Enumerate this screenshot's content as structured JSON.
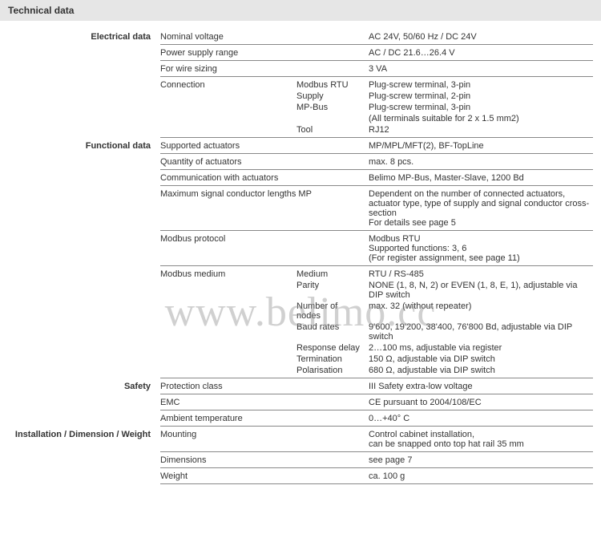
{
  "header": "Technical data",
  "watermark": "www.belimo.cc",
  "sections": [
    {
      "title": "Electrical data",
      "rows": [
        {
          "param": "Nominal voltage",
          "value": "AC 24V, 50/60 Hz / DC 24V"
        },
        {
          "param": "Power supply range",
          "value": "AC / DC 21.6…26.4 V"
        },
        {
          "param": "For wire sizing",
          "value": "3 VA"
        },
        {
          "param": "Connection",
          "sub": [
            {
              "s": "Modbus RTU",
              "v": "Plug-screw terminal, 3-pin"
            },
            {
              "s": "Supply",
              "v": "Plug-screw terminal, 2-pin"
            },
            {
              "s": "MP-Bus",
              "v": "Plug-screw terminal, 3-pin"
            },
            {
              "s": "",
              "v": "(All terminals suitable for 2 x 1.5 mm2)"
            },
            {
              "s": "Tool",
              "v": "RJ12"
            }
          ]
        }
      ]
    },
    {
      "title": "Functional data",
      "rows": [
        {
          "param": "Supported actuators",
          "value": "MP/MPL/MFT(2), BF-TopLine"
        },
        {
          "param": "Quantity of actuators",
          "value": "max. 8 pcs."
        },
        {
          "param": "Communication with actuators",
          "value": "Belimo MP-Bus, Master-Slave, 1200 Bd"
        },
        {
          "param": "Maximum signal conductor lengths MP",
          "value": "Dependent on the number of connected actuators, actuator type, type of supply and signal conductor cross-section\nFor details see page 5"
        },
        {
          "param": "Modbus protocol",
          "value": "Modbus RTU\nSupported functions: 3, 6\n(For register assignment, see page 11)"
        },
        {
          "param": "Modbus medium",
          "sub": [
            {
              "s": "Medium",
              "v": "RTU / RS-485"
            },
            {
              "s": "Parity",
              "v": "NONE (1, 8, N, 2) or EVEN (1, 8, E, 1), adjustable via DIP switch"
            },
            {
              "s": "Number of nodes",
              "v": "max. 32 (without repeater)"
            },
            {
              "s": "Baud rates",
              "v": "9'600, 19'200, 38'400, 76'800 Bd, adjustable via DIP switch"
            },
            {
              "s": "Response delay",
              "v": "2…100 ms, adjustable via register"
            },
            {
              "s": "Termination",
              "v": "150 Ω, adjustable via DIP switch"
            },
            {
              "s": "Polarisation",
              "v": "680 Ω, adjustable via DIP switch"
            }
          ]
        }
      ]
    },
    {
      "title": "Safety",
      "rows": [
        {
          "param": "Protection class",
          "value": "III Safety extra-low voltage"
        },
        {
          "param": "EMC",
          "value": "CE pursuant to 2004/108/EC"
        },
        {
          "param": "Ambient temperature",
          "value": "0…+40° C"
        }
      ]
    },
    {
      "title": "Installation / Dimension / Weight",
      "rows": [
        {
          "param": "Mounting",
          "value": "Control cabinet installation,\ncan be snapped onto top hat rail 35 mm"
        },
        {
          "param": "Dimensions",
          "value": "see page 7"
        },
        {
          "param": "Weight",
          "value": "ca. 100 g"
        }
      ]
    }
  ]
}
